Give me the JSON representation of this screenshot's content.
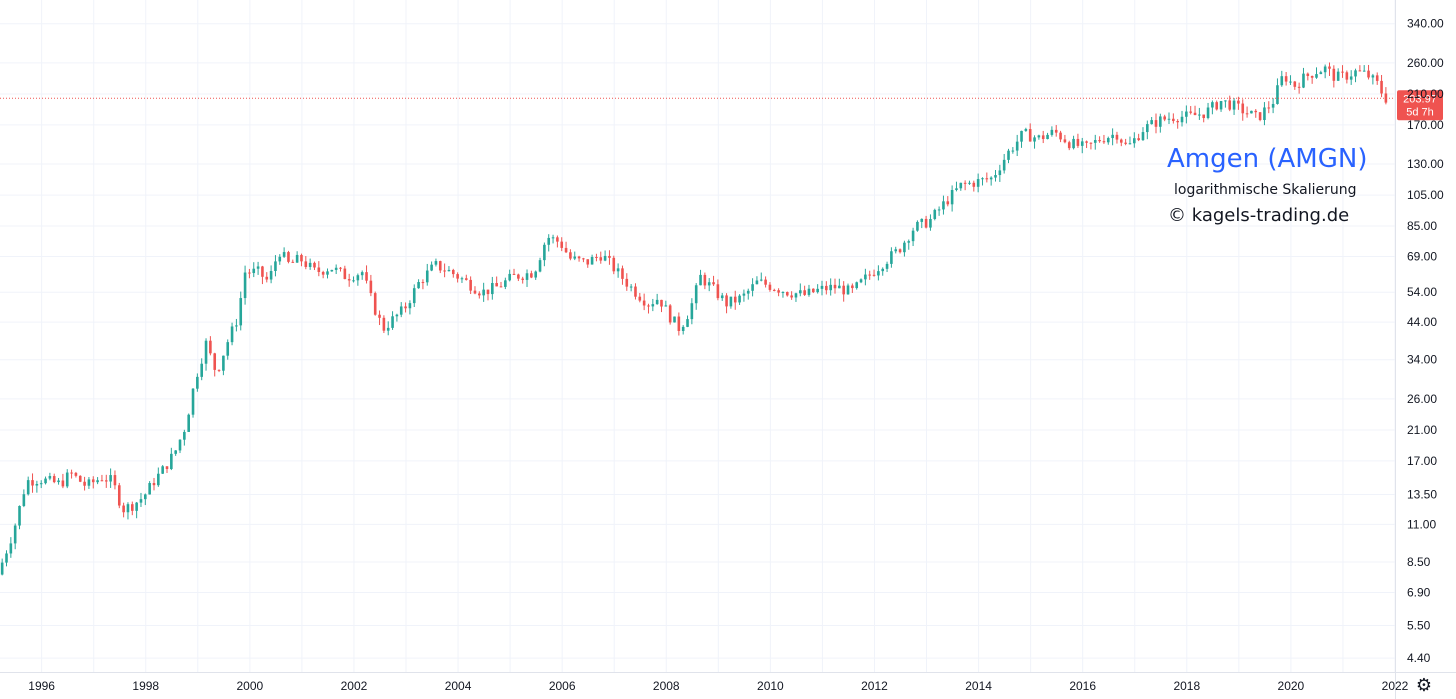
{
  "chart_data": {
    "type": "candlestick",
    "title": "Amgen (AMGN)",
    "subtitle": "logarithmische Skalierung",
    "copyright": "© kagels-trading.de",
    "y_scale": "log",
    "ylim": [
      4.0,
      400.0
    ],
    "xlim": [
      1995.2,
      2022.0
    ],
    "y_ticks": [
      4.4,
      5.5,
      6.9,
      8.5,
      11.0,
      13.5,
      17.0,
      21.0,
      26.0,
      34.0,
      44.0,
      54.0,
      69.0,
      85.0,
      105.0,
      130.0,
      170.0,
      210.0,
      260.0,
      340.0
    ],
    "y_tick_labels": [
      "4.40",
      "5.50",
      "6.90",
      "8.50",
      "11.00",
      "13.50",
      "17.00",
      "21.00",
      "26.00",
      "34.00",
      "44.00",
      "54.00",
      "69.00",
      "85.00",
      "105.00",
      "130.00",
      "170.00",
      "210.00",
      "260.00",
      "340.00"
    ],
    "x_ticks": [
      1996,
      1998,
      2000,
      2002,
      2004,
      2006,
      2008,
      2010,
      2012,
      2014,
      2016,
      2018,
      2020,
      2022
    ],
    "x_tick_labels": [
      "1996",
      "1998",
      "2000",
      "2002",
      "2004",
      "2006",
      "2008",
      "2010",
      "2012",
      "2014",
      "2016",
      "2018",
      "2020",
      "2022"
    ],
    "grid": true,
    "up_color": "#26a69a",
    "down_color": "#ef5350",
    "last_price": 203.97,
    "last_price_label": "203.97",
    "countdown_label": "5d 7h",
    "price_points": [
      [
        1995.2,
        7.8
      ],
      [
        1995.5,
        10.5
      ],
      [
        1995.75,
        14.8
      ],
      [
        1996.0,
        15.0
      ],
      [
        1996.4,
        14.5
      ],
      [
        1996.6,
        15.6
      ],
      [
        1996.9,
        14.3
      ],
      [
        1997.2,
        15.2
      ],
      [
        1997.4,
        14.8
      ],
      [
        1997.6,
        12.2
      ],
      [
        1997.8,
        12.6
      ],
      [
        1998.0,
        13.3
      ],
      [
        1998.2,
        14.8
      ],
      [
        1998.4,
        16.2
      ],
      [
        1998.6,
        18.0
      ],
      [
        1998.8,
        21.5
      ],
      [
        1999.0,
        30.0
      ],
      [
        1999.2,
        38.0
      ],
      [
        1999.4,
        31.0
      ],
      [
        1999.6,
        38.0
      ],
      [
        1999.8,
        45.0
      ],
      [
        1999.95,
        62.0
      ],
      [
        2000.2,
        62.0
      ],
      [
        2000.4,
        58.0
      ],
      [
        2000.6,
        72.0
      ],
      [
        2000.8,
        65.0
      ],
      [
        2001.0,
        68.0
      ],
      [
        2001.3,
        62.0
      ],
      [
        2001.6,
        64.0
      ],
      [
        2001.9,
        60.0
      ],
      [
        2002.2,
        62.0
      ],
      [
        2002.4,
        50.0
      ],
      [
        2002.6,
        42.0
      ],
      [
        2002.8,
        45.0
      ],
      [
        2003.0,
        48.0
      ],
      [
        2003.3,
        58.0
      ],
      [
        2003.6,
        65.0
      ],
      [
        2003.9,
        62.0
      ],
      [
        2004.2,
        58.0
      ],
      [
        2004.5,
        54.0
      ],
      [
        2004.8,
        56.0
      ],
      [
        2005.1,
        60.0
      ],
      [
        2005.5,
        62.0
      ],
      [
        2005.75,
        79.0
      ],
      [
        2006.0,
        76.0
      ],
      [
        2006.2,
        68.0
      ],
      [
        2006.5,
        66.0
      ],
      [
        2006.8,
        70.0
      ],
      [
        2007.1,
        62.0
      ],
      [
        2007.4,
        55.0
      ],
      [
        2007.7,
        50.0
      ],
      [
        2007.9,
        52.0
      ],
      [
        2008.1,
        46.0
      ],
      [
        2008.3,
        42.0
      ],
      [
        2008.5,
        48.0
      ],
      [
        2008.7,
        60.0
      ],
      [
        2008.9,
        56.0
      ],
      [
        2009.2,
        50.0
      ],
      [
        2009.5,
        52.0
      ],
      [
        2009.8,
        58.0
      ],
      [
        2010.1,
        56.0
      ],
      [
        2010.4,
        54.0
      ],
      [
        2010.7,
        53.0
      ],
      [
        2011.0,
        55.0
      ],
      [
        2011.3,
        56.0
      ],
      [
        2011.6,
        54.0
      ],
      [
        2011.9,
        60.0
      ],
      [
        2012.2,
        66.0
      ],
      [
        2012.5,
        72.0
      ],
      [
        2012.8,
        84.0
      ],
      [
        2013.1,
        88.0
      ],
      [
        2013.4,
        100.0
      ],
      [
        2013.7,
        112.0
      ],
      [
        2014.0,
        115.0
      ],
      [
        2014.3,
        118.0
      ],
      [
        2014.6,
        140.0
      ],
      [
        2014.9,
        160.0
      ],
      [
        2015.2,
        155.0
      ],
      [
        2015.5,
        162.0
      ],
      [
        2015.8,
        150.0
      ],
      [
        2016.1,
        145.0
      ],
      [
        2016.4,
        155.0
      ],
      [
        2016.7,
        160.0
      ],
      [
        2016.9,
        145.0
      ],
      [
        2017.2,
        165.0
      ],
      [
        2017.5,
        175.0
      ],
      [
        2017.8,
        180.0
      ],
      [
        2018.1,
        180.0
      ],
      [
        2018.4,
        185.0
      ],
      [
        2018.7,
        200.0
      ],
      [
        2018.9,
        195.0
      ],
      [
        2019.2,
        185.0
      ],
      [
        2019.4,
        178.0
      ],
      [
        2019.7,
        200.0
      ],
      [
        2019.9,
        240.0
      ],
      [
        2020.1,
        222.0
      ],
      [
        2020.3,
        235.0
      ],
      [
        2020.5,
        245.0
      ],
      [
        2020.7,
        250.0
      ],
      [
        2020.9,
        235.0
      ],
      [
        2021.1,
        238.0
      ],
      [
        2021.3,
        245.0
      ],
      [
        2021.5,
        240.0
      ],
      [
        2021.7,
        225.0
      ],
      [
        2021.85,
        204.0
      ]
    ]
  },
  "ui": {
    "settings_icon": "gear-icon"
  }
}
